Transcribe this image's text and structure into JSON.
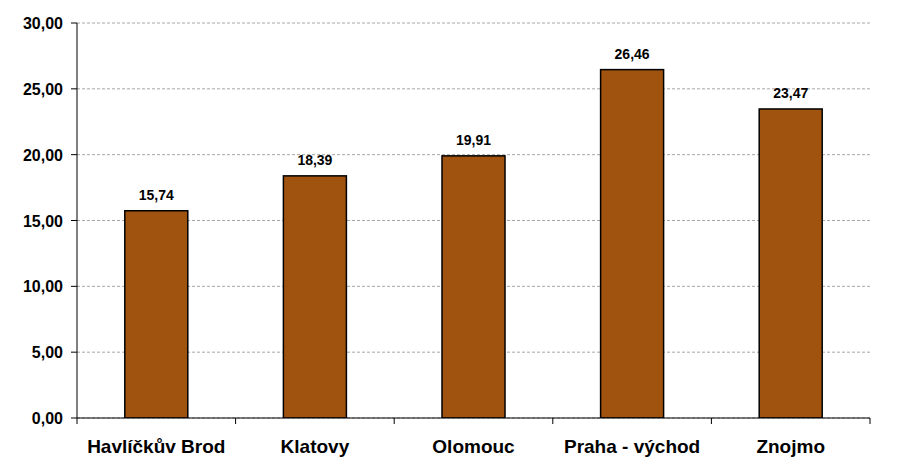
{
  "chart_data": {
    "type": "bar",
    "categories": [
      "Havlíčkův Brod",
      "Klatovy",
      "Olomouc",
      "Praha - východ",
      "Znojmo"
    ],
    "values": [
      15.74,
      18.39,
      19.91,
      26.46,
      23.47
    ],
    "value_labels": [
      "15,74",
      "18,39",
      "19,91",
      "26,46",
      "23,47"
    ],
    "color": "#a0520f",
    "ylim": [
      0,
      30
    ],
    "yticks": [
      {
        "value": 0,
        "label": "0,00"
      },
      {
        "value": 5,
        "label": "5,00"
      },
      {
        "value": 10,
        "label": "10,00"
      },
      {
        "value": 15,
        "label": "15,00"
      },
      {
        "value": 20,
        "label": "20,00"
      },
      {
        "value": 25,
        "label": "25,00"
      },
      {
        "value": 30,
        "label": "30,00"
      }
    ],
    "grid": true,
    "data_labels": true
  }
}
